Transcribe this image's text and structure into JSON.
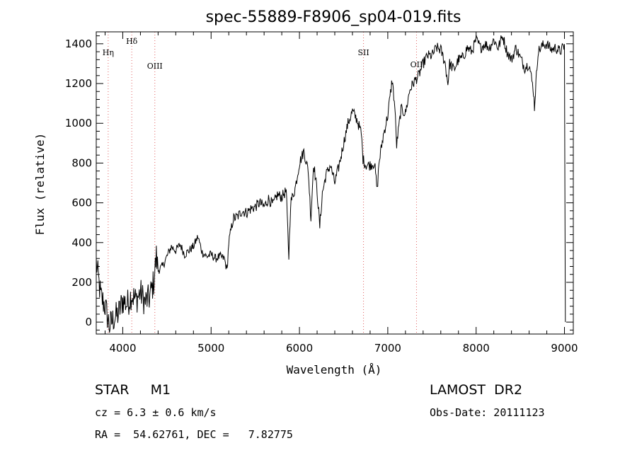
{
  "chart_data": {
    "type": "line",
    "title": "spec-55889-F8906_sp04-019.fits",
    "xlabel": "Wavelength (Å)",
    "ylabel": "Flux (relative)",
    "xlim": [
      3700,
      9100
    ],
    "ylim": [
      -60,
      1460
    ],
    "xticks": [
      4000,
      5000,
      6000,
      7000,
      8000,
      9000
    ],
    "yticks": [
      0,
      200,
      400,
      600,
      800,
      1000,
      1200,
      1400
    ],
    "grid": false,
    "series": [
      {
        "x": [
          3700,
          3750,
          3800,
          3850,
          3900,
          3950,
          4000,
          4050,
          4100,
          4150,
          4200,
          4250,
          4300,
          4350,
          4380,
          4400,
          4450,
          4500,
          4550,
          4600,
          4650,
          4700,
          4750,
          4800,
          4850,
          4900,
          4950,
          5000,
          5050,
          5100,
          5150,
          5180,
          5200,
          5250,
          5300,
          5350,
          5400,
          5450,
          5500,
          5550,
          5600,
          5650,
          5700,
          5750,
          5800,
          5850,
          5880,
          5900,
          5950,
          6000,
          6050,
          6100,
          6130,
          6160,
          6200,
          6230,
          6260,
          6300,
          6350,
          6400,
          6450,
          6500,
          6550,
          6600,
          6650,
          6700,
          6720,
          6750,
          6800,
          6850,
          6880,
          6900,
          6950,
          7000,
          7050,
          7080,
          7100,
          7150,
          7200,
          7250,
          7300,
          7350,
          7400,
          7450,
          7500,
          7550,
          7600,
          7650,
          7680,
          7700,
          7750,
          7800,
          7850,
          7900,
          7950,
          8000,
          8050,
          8100,
          8150,
          8200,
          8250,
          8300,
          8350,
          8400,
          8450,
          8500,
          8550,
          8600,
          8650,
          8660,
          8700,
          8750,
          8800,
          8850,
          8900,
          8950,
          9000,
          9010
        ],
        "values": [
          300,
          130,
          80,
          -20,
          20,
          40,
          110,
          90,
          140,
          110,
          150,
          100,
          120,
          200,
          330,
          260,
          280,
          330,
          380,
          360,
          390,
          340,
          360,
          380,
          430,
          350,
          330,
          340,
          320,
          330,
          320,
          260,
          400,
          520,
          530,
          560,
          550,
          570,
          580,
          600,
          580,
          620,
          590,
          640,
          630,
          660,
          330,
          600,
          670,
          800,
          860,
          760,
          520,
          800,
          660,
          480,
          650,
          740,
          790,
          700,
          790,
          900,
          1000,
          1060,
          1020,
          950,
          820,
          790,
          790,
          800,
          660,
          800,
          940,
          1040,
          1220,
          1080,
          890,
          1070,
          1050,
          1170,
          1210,
          1240,
          1300,
          1340,
          1340,
          1380,
          1370,
          1300,
          1200,
          1300,
          1270,
          1320,
          1330,
          1380,
          1360,
          1420,
          1380,
          1400,
          1380,
          1420,
          1380,
          1440,
          1360,
          1320,
          1380,
          1330,
          1280,
          1300,
          1160,
          1080,
          1360,
          1390,
          1400,
          1370,
          1380,
          1360,
          1390,
          0
        ]
      }
    ],
    "line_markers": [
      {
        "label": "Hη",
        "x": 3835
      },
      {
        "label": "Hδ",
        "x": 4102
      },
      {
        "label": "OIII",
        "x": 4363
      },
      {
        "label": "SII",
        "x": 6725
      },
      {
        "label": "OII",
        "x": 7325
      }
    ]
  },
  "info": {
    "object": "STAR     M1",
    "survey": "LAMOST  DR2",
    "cz": "cz = 6.3 ± 0.6 km/s",
    "obs_date": "Obs-Date: 20111123",
    "coords": "RA =  54.62761, DEC =   7.82775"
  },
  "colors": {
    "spectrum": "#000000",
    "marker_line": "#e06060",
    "axes": "#000000"
  }
}
